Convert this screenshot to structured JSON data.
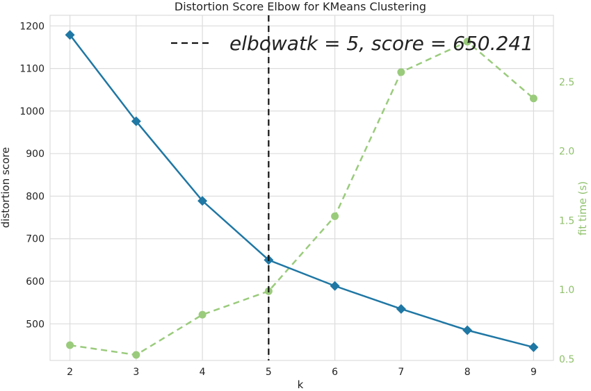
{
  "chart_data": {
    "type": "line",
    "title": "Distortion Score Elbow for KMeans Clustering",
    "xlabel": "k",
    "ylabel": "distortion score",
    "y2label": "fit time (s)",
    "x": [
      2,
      3,
      4,
      5,
      6,
      7,
      8,
      9
    ],
    "xlim": [
      1.7,
      9.3
    ],
    "ylim": [
      414,
      1225
    ],
    "y2lim": [
      0.49,
      2.98
    ],
    "xticks": [
      "2",
      "3",
      "4",
      "5",
      "6",
      "7",
      "8",
      "9"
    ],
    "yticks": [
      "500",
      "600",
      "700",
      "800",
      "900",
      "1000",
      "1100",
      "1200"
    ],
    "y2ticks": [
      "0.5",
      "1.0",
      "1.5",
      "2.0",
      "2.5"
    ],
    "grid": true,
    "series": [
      {
        "axis": "left",
        "style": "solid",
        "marker": "diamond",
        "color": "#1f77a4",
        "values": [
          1179,
          976,
          789,
          650,
          589,
          535,
          485,
          445
        ]
      },
      {
        "axis": "right",
        "style": "dashed",
        "marker": "circle",
        "color": "#9acb7c",
        "values": [
          0.6,
          0.53,
          0.82,
          0.99,
          1.53,
          2.57,
          2.79,
          2.38
        ]
      }
    ],
    "elbow": {
      "k": 5,
      "legend_text": "elbowatk = 5, score = 650.241",
      "legend_placement": "top"
    }
  }
}
